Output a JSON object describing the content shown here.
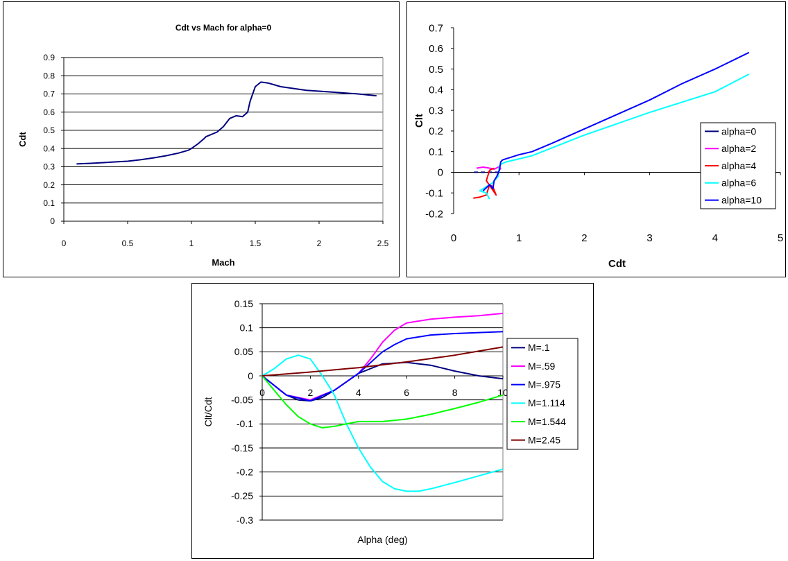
{
  "chart_data": [
    {
      "type": "line",
      "title": "Cdt vs Mach for alpha=0",
      "xlabel": "Mach",
      "ylabel": "Cdt",
      "xlim": [
        0,
        2.5
      ],
      "ylim": [
        0,
        0.9
      ],
      "xticks": [
        "0",
        "0.5",
        "1",
        "1.5",
        "2",
        "2.5"
      ],
      "yticks": [
        "0",
        "0.1",
        "0.2",
        "0.3",
        "0.4",
        "0.5",
        "0.6",
        "0.7",
        "0.8",
        "0.9"
      ],
      "grid": "horizontal",
      "legend": "none",
      "series": [
        {
          "color": "#000080",
          "x": [
            0.1,
            0.2,
            0.3,
            0.4,
            0.5,
            0.6,
            0.7,
            0.8,
            0.9,
            0.975,
            1.0,
            1.05,
            1.1,
            1.114,
            1.2,
            1.25,
            1.3,
            1.35,
            1.4,
            1.44,
            1.46,
            1.5,
            1.544,
            1.6,
            1.7,
            1.8,
            1.9,
            2.0,
            2.1,
            2.2,
            2.3,
            2.45
          ],
          "y": [
            0.315,
            0.318,
            0.322,
            0.326,
            0.33,
            0.338,
            0.348,
            0.36,
            0.375,
            0.39,
            0.4,
            0.425,
            0.455,
            0.465,
            0.49,
            0.52,
            0.565,
            0.58,
            0.575,
            0.6,
            0.66,
            0.74,
            0.765,
            0.76,
            0.74,
            0.73,
            0.72,
            0.715,
            0.71,
            0.705,
            0.7,
            0.69
          ]
        }
      ]
    },
    {
      "type": "line",
      "xlabel": "Cdt",
      "ylabel": "Clt",
      "xlim": [
        0,
        5
      ],
      "ylim": [
        -0.2,
        0.7
      ],
      "xticks": [
        "0",
        "1",
        "2",
        "3",
        "4",
        "5"
      ],
      "yticks": [
        "-0.2",
        "-0.1",
        "0",
        "0.1",
        "0.2",
        "0.3",
        "0.4",
        "0.5",
        "0.6",
        "0.7"
      ],
      "grid": "none",
      "legend": "right",
      "series": [
        {
          "name": "alpha=0",
          "color": "#000080",
          "dash": true,
          "x": [
            0.31,
            0.4,
            0.5,
            0.6,
            0.72
          ],
          "y": [
            0,
            0,
            0,
            0,
            0
          ]
        },
        {
          "name": "alpha=2",
          "color": "#FF00FF",
          "x": [
            0.35,
            0.45,
            0.55,
            0.62,
            0.68,
            0.72,
            0.7
          ],
          "y": [
            0.02,
            0.025,
            0.02,
            0.015,
            0.025,
            0.02,
            0.01
          ]
        },
        {
          "name": "alpha=4",
          "color": "#FF0000",
          "x": [
            0.3,
            0.4,
            0.5,
            0.55,
            0.6,
            0.65,
            0.5,
            0.55,
            0.62
          ],
          "y": [
            -0.125,
            -0.12,
            -0.11,
            -0.06,
            -0.07,
            -0.11,
            -0.04,
            0.01,
            0.02
          ]
        },
        {
          "name": "alpha=6",
          "color": "#00FFFF",
          "x": [
            0.55,
            0.5,
            0.4,
            0.6,
            0.68,
            0.7,
            0.73,
            0.8,
            1.2,
            2.0,
            3.0,
            4.0,
            4.52
          ],
          "y": [
            -0.13,
            -0.1,
            -0.09,
            -0.05,
            -0.02,
            0.03,
            0.04,
            0.05,
            0.08,
            0.18,
            0.29,
            0.39,
            0.475
          ]
        },
        {
          "name": "alpha=10",
          "color": "#0000FF",
          "x": [
            0.45,
            0.55,
            0.6,
            0.62,
            0.66,
            0.7,
            0.72,
            0.75,
            0.85,
            1.0,
            1.2,
            1.5,
            2.0,
            2.5,
            3.0,
            3.5,
            4.0,
            4.52
          ],
          "y": [
            -0.09,
            -0.06,
            -0.08,
            -0.04,
            -0.02,
            0.01,
            0.05,
            0.06,
            0.07,
            0.085,
            0.1,
            0.14,
            0.21,
            0.28,
            0.35,
            0.43,
            0.5,
            0.58
          ]
        }
      ]
    },
    {
      "type": "line",
      "xlabel": "Alpha (deg)",
      "ylabel": "Clt/Cdt",
      "xlim": [
        0,
        10
      ],
      "ylim": [
        -0.3,
        0.15
      ],
      "xticks": [
        "0",
        "2",
        "4",
        "6",
        "8",
        "10"
      ],
      "yticks": [
        "-0.3",
        "-0.25",
        "-0.2",
        "-0.15",
        "-0.1",
        "-0.05",
        "0",
        "0.05",
        "0.1",
        "0.15"
      ],
      "grid": "horizontal",
      "legend": "right",
      "series": [
        {
          "name": "M=.1",
          "color": "#000080",
          "x": [
            0,
            0.5,
            1,
            1.5,
            2,
            2.5,
            3,
            4,
            5,
            6,
            7,
            8,
            9,
            10
          ],
          "y": [
            0,
            -0.02,
            -0.04,
            -0.05,
            -0.052,
            -0.045,
            -0.03,
            0.005,
            0.025,
            0.028,
            0.022,
            0.01,
            0.0,
            -0.006
          ]
        },
        {
          "name": "M=.59",
          "color": "#FF00FF",
          "x": [
            0,
            1,
            2,
            3,
            4,
            4.5,
            5,
            5.5,
            6,
            7,
            8,
            9,
            10
          ],
          "y": [
            0,
            -0.04,
            -0.05,
            -0.03,
            0.005,
            0.035,
            0.07,
            0.095,
            0.11,
            0.118,
            0.122,
            0.125,
            0.13
          ]
        },
        {
          "name": "M=.975",
          "color": "#0000FF",
          "x": [
            0,
            1,
            2,
            3,
            4,
            5,
            5.5,
            6,
            7,
            8,
            9,
            10
          ],
          "y": [
            0,
            -0.04,
            -0.052,
            -0.03,
            0.005,
            0.05,
            0.065,
            0.077,
            0.085,
            0.088,
            0.09,
            0.092
          ]
        },
        {
          "name": "M=1.114",
          "color": "#00FFFF",
          "x": [
            0,
            0.5,
            1,
            1.5,
            2,
            2.5,
            3,
            3.5,
            4,
            4.5,
            5,
            5.5,
            6,
            6.5,
            7,
            8,
            9,
            10
          ],
          "y": [
            0,
            0.015,
            0.035,
            0.043,
            0.035,
            0.0,
            -0.04,
            -0.1,
            -0.15,
            -0.19,
            -0.22,
            -0.235,
            -0.24,
            -0.24,
            -0.235,
            -0.222,
            -0.208,
            -0.194
          ]
        },
        {
          "name": "M=1.544",
          "color": "#00FF00",
          "x": [
            0,
            0.5,
            1,
            1.5,
            2,
            2.5,
            3,
            3.5,
            4,
            5,
            6,
            7,
            8,
            9,
            10
          ],
          "y": [
            0,
            -0.03,
            -0.06,
            -0.085,
            -0.1,
            -0.108,
            -0.105,
            -0.1,
            -0.095,
            -0.095,
            -0.09,
            -0.08,
            -0.068,
            -0.055,
            -0.04
          ]
        },
        {
          "name": "M=2.45",
          "color": "#800000",
          "x": [
            0,
            2,
            4,
            6,
            8,
            10
          ],
          "y": [
            0,
            0.008,
            0.017,
            0.029,
            0.043,
            0.06
          ]
        }
      ]
    }
  ]
}
